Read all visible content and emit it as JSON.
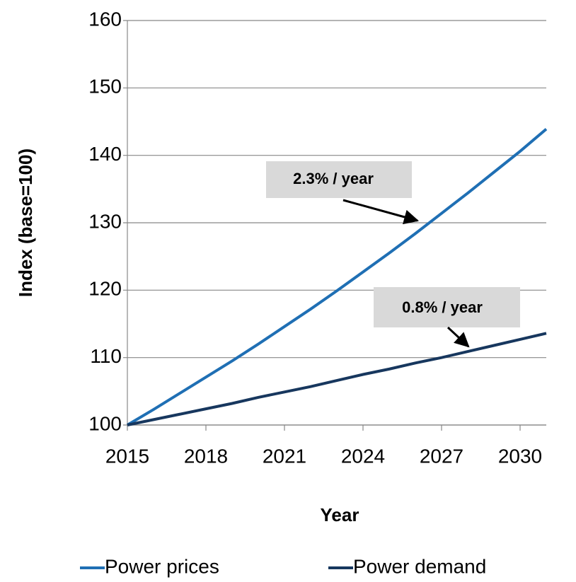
{
  "chart_data": {
    "type": "line",
    "x": [
      2015,
      2016,
      2017,
      2018,
      2019,
      2020,
      2021,
      2022,
      2023,
      2024,
      2025,
      2026,
      2027,
      2028,
      2029,
      2030,
      2031
    ],
    "series": [
      {
        "name": "Power prices",
        "color": "#1f6fb4",
        "values": [
          100,
          102.3,
          104.7,
          107.1,
          109.5,
          112.0,
          114.6,
          117.2,
          119.9,
          122.7,
          125.5,
          128.4,
          131.4,
          134.4,
          137.5,
          140.6,
          143.9
        ]
      },
      {
        "name": "Power demand",
        "color": "#17375e",
        "values": [
          100,
          100.8,
          101.6,
          102.4,
          103.2,
          104.1,
          104.9,
          105.7,
          106.6,
          107.5,
          108.3,
          109.2,
          110.0,
          110.9,
          111.8,
          112.7,
          113.6
        ]
      }
    ],
    "xlabel": "Year",
    "ylabel": "Index (base=100)",
    "xlim": [
      2015,
      2031
    ],
    "xticks": [
      2015,
      2018,
      2021,
      2024,
      2027,
      2030
    ],
    "ylim": [
      100,
      160
    ],
    "yticks": [
      100,
      110,
      120,
      130,
      140,
      150,
      160
    ],
    "grid": true,
    "annotations": [
      "2.3% / year",
      "0.8% / year"
    ]
  }
}
